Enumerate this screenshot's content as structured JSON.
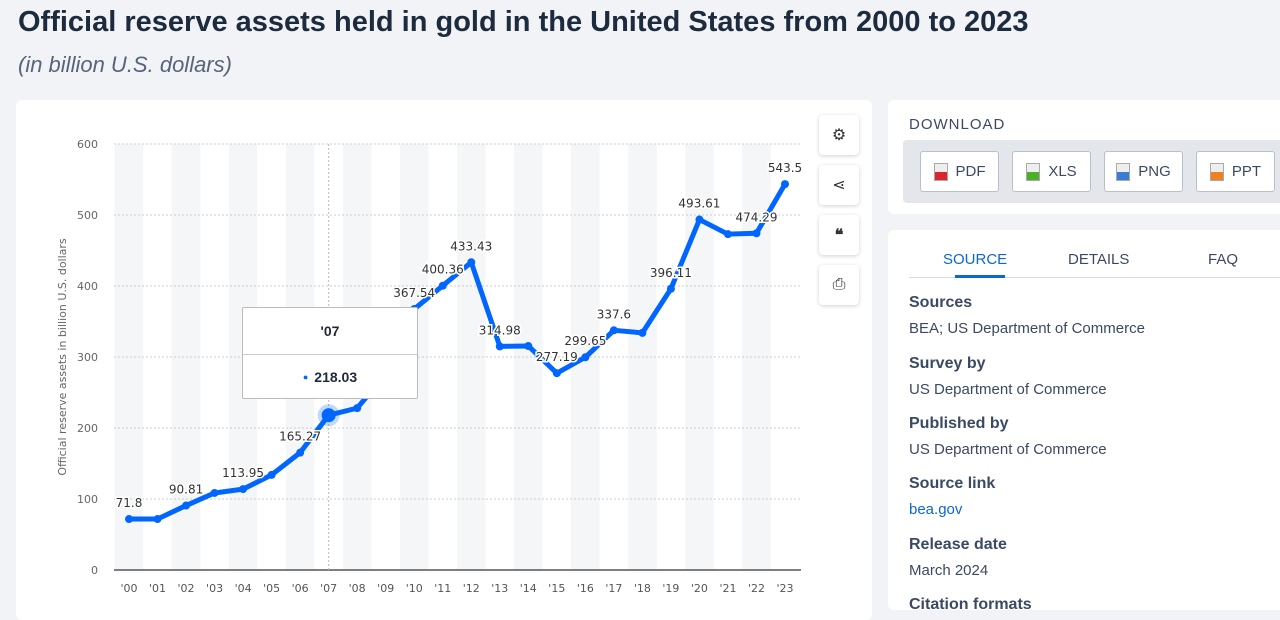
{
  "header": {
    "title": "Official reserve assets held in gold in the United States from 2000 to 2023",
    "subtitle": "(in billion U.S. dollars)"
  },
  "chart_data": {
    "type": "line",
    "title": "",
    "xlabel": "",
    "ylabel": "Official reserve assets in billion U.S. dollars",
    "categories": [
      "'00",
      "'01",
      "'02",
      "'03",
      "'04",
      "'05",
      "'06",
      "'07",
      "'08",
      "'09",
      "'10",
      "'11",
      "'12",
      "'13",
      "'14",
      "'15",
      "'16",
      "'17",
      "'18",
      "'19",
      "'20",
      "'21",
      "'22",
      "'23"
    ],
    "values": [
      71.8,
      71.8,
      90.81,
      108.5,
      113.95,
      134,
      165.27,
      218.03,
      228,
      276,
      367.54,
      400.36,
      433.43,
      314.98,
      315.5,
      277.19,
      299.65,
      337.6,
      334,
      396.11,
      493.61,
      473,
      474.29,
      543.5
    ],
    "data_labels": [
      "71.8",
      "",
      "90.81",
      "",
      "113.95",
      "",
      "165.27",
      "",
      "",
      "",
      "367.54",
      "400.36",
      "433.43",
      "314.98",
      "",
      "277.19",
      "299.65",
      "337.6",
      "",
      "396.11",
      "493.61",
      "",
      "474.29",
      "543.5"
    ],
    "ylim": [
      0,
      600
    ],
    "yticks": [
      0,
      100,
      200,
      300,
      400,
      500,
      600
    ],
    "grid": true,
    "color": "#0066ff",
    "tooltip": {
      "category": "'07",
      "value": "218.03"
    }
  },
  "tools": [
    {
      "icon": "gear-icon"
    },
    {
      "icon": "share-icon"
    },
    {
      "icon": "quote-icon"
    },
    {
      "icon": "print-icon"
    }
  ],
  "download": {
    "title": "DOWNLOAD",
    "buttons": [
      {
        "label": "PDF",
        "color": "#d9262b"
      },
      {
        "label": "XLS",
        "color": "#4caf2a"
      },
      {
        "label": "PNG",
        "color": "#3a7bd5"
      },
      {
        "label": "PPT",
        "color": "#f0811e"
      }
    ]
  },
  "source": {
    "tabs": [
      "SOURCE",
      "DETAILS",
      "FAQ"
    ],
    "sections": [
      {
        "heading": "Sources",
        "value": "BEA; US Department of Commerce"
      },
      {
        "heading": "Survey by",
        "value": "US Department of Commerce"
      },
      {
        "heading": "Published by",
        "value": "US Department of Commerce"
      },
      {
        "heading": "Source link",
        "value": "bea.gov"
      },
      {
        "heading": "Release date",
        "value": "March 2024"
      },
      {
        "heading": "Citation formats",
        "value": ""
      }
    ]
  }
}
